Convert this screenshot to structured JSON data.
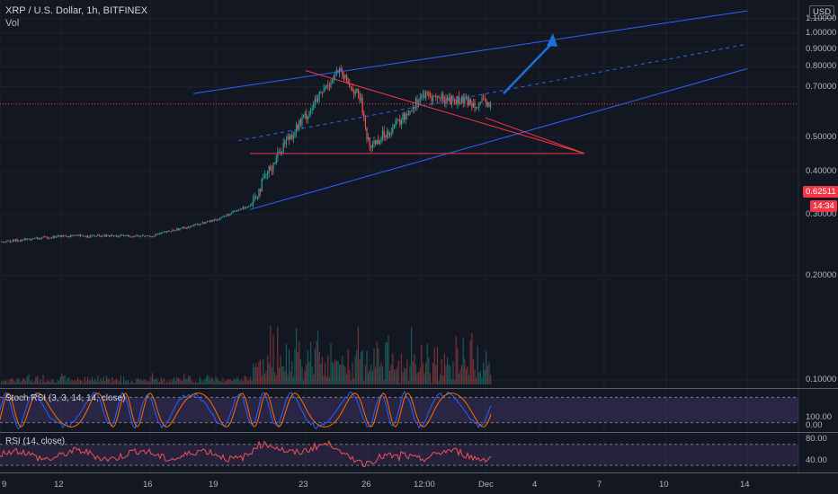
{
  "header": {
    "symbol_title": "XRP / U.S. Dollar, 1h, BITFINEX",
    "volume_label": "Vol",
    "currency_button": "USD"
  },
  "colors": {
    "background": "#131722",
    "up_candle": "#26a69a",
    "down_candle": "#ef5350",
    "channel": "#2962ff",
    "triangle": "#f23645",
    "arrow": "#1e6fd9",
    "price_line": "#f23645",
    "indicator_band": "#7e57c2",
    "stoch_k": "#2962ff",
    "stoch_d": "#ff6d00",
    "rsi_line": "#ef5350"
  },
  "price_axis": {
    "ticks": [
      "1.10000",
      "1.00000",
      "0.90000",
      "0.80000",
      "0.70000",
      "0.50000",
      "0.40000",
      "0.30000",
      "0.20000",
      "0.10000"
    ],
    "current_price_label": "0.62511",
    "countdown_label": "14:34"
  },
  "time_axis": {
    "labels": [
      "9",
      "12",
      "16",
      "19",
      "23",
      "26",
      "12:00",
      "Dec",
      "4",
      "7",
      "10",
      "14"
    ]
  },
  "indicators": {
    "stoch_label": "Stoch RSI (3, 3, 14, 14, close)",
    "stoch_ticks": [
      "100.00",
      "0.00"
    ],
    "rsi_label": "RSI (14, close)",
    "rsi_ticks": [
      "80.00",
      "40.00"
    ]
  },
  "chart_data": {
    "type": "candlestick",
    "title": "XRP / U.S. Dollar, 1h, BITFINEX",
    "yscale": "log",
    "ylim": [
      0.095,
      1.16
    ],
    "last_price": 0.62511,
    "price_path_approx": [
      {
        "x": "9",
        "y": 0.25
      },
      {
        "x": "12",
        "y": 0.26
      },
      {
        "x": "16",
        "y": 0.26
      },
      {
        "x": "19",
        "y": 0.29
      },
      {
        "x": "21",
        "y": 0.32
      },
      {
        "x": "22",
        "y": 0.48
      },
      {
        "x": "23",
        "y": 0.58
      },
      {
        "x": "24",
        "y": 0.78
      },
      {
        "x": "25",
        "y": 0.65
      },
      {
        "x": "26",
        "y": 0.47
      },
      {
        "x": "27",
        "y": 0.56
      },
      {
        "x": "12:00",
        "y": 0.66
      },
      {
        "x": "Dec",
        "y": 0.62511
      }
    ],
    "drawings": {
      "channel_upper": [
        {
          "x": "18",
          "y": 0.67
        },
        {
          "x": "14",
          "y": 1.16
        }
      ],
      "channel_middle": [
        {
          "x": "20",
          "y": 0.49
        },
        {
          "x": "14",
          "y": 0.93
        }
      ],
      "channel_lower": [
        {
          "x": "21",
          "y": 0.31
        },
        {
          "x": "14",
          "y": 0.79
        }
      ],
      "triangle_top": [
        {
          "x": "23",
          "y": 0.78
        },
        {
          "x": "5",
          "y": 0.45
        }
      ],
      "triangle_base": [
        {
          "x": "21",
          "y": 0.45
        },
        {
          "x": "5",
          "y": 0.45
        }
      ],
      "arrow": [
        {
          "x": "2",
          "y": 0.67
        },
        {
          "x": "3",
          "y": 1.0
        }
      ]
    },
    "indicator_panes": [
      {
        "name": "Stoch RSI (3, 3, 14, 14, close)",
        "band": [
          20,
          80
        ],
        "ylim": [
          0,
          100
        ]
      },
      {
        "name": "RSI (14, close)",
        "band": [
          30,
          70
        ],
        "ylim": [
          20,
          90
        ]
      }
    ]
  }
}
